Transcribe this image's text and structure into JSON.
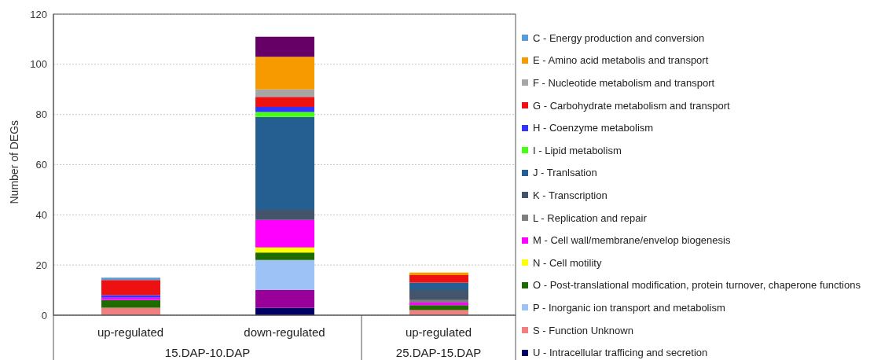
{
  "chart_data": {
    "type": "bar",
    "stacked": true,
    "ylabel": "Number of DEGs",
    "categories": [
      "up-regulated",
      "down-regulated",
      "up-regulated"
    ],
    "annotations": [
      "15.DAP-10.DAP",
      "25.DAP-15.DAP"
    ],
    "ylim": [
      0,
      120
    ],
    "yticks": [
      0,
      20,
      40,
      60,
      80,
      100,
      120
    ],
    "grid": "y",
    "legend": "right",
    "series": [
      {
        "name": "U - Intracellular trafficing and secretion",
        "color": "#000066",
        "values": [
          null,
          3,
          null
        ]
      },
      {
        "color": "#990099",
        "values": [
          null,
          7,
          null
        ]
      },
      {
        "name": "S -  Function Unknown",
        "color": "#f08080",
        "values": [
          3,
          null,
          2
        ]
      },
      {
        "name": "P -  Inorganic ion transport and metabolism",
        "color": "#9dc3f6",
        "values": [
          null,
          12,
          null
        ]
      },
      {
        "name": "O - Post-translational modification, protein turnover, chaperone functions",
        "color": "#1e6b00",
        "values": [
          3,
          3,
          2
        ]
      },
      {
        "name": "N - Cell motility",
        "color": "#ffff00",
        "values": [
          null,
          2,
          null
        ]
      },
      {
        "name": "M - Cell wall/membrane/envelop biogenesis",
        "color": "#ff00ff",
        "values": [
          1,
          11,
          1
        ]
      },
      {
        "name": "L - Replication and repair",
        "color": "#7f7f7f",
        "values": [
          null,
          null,
          1
        ]
      },
      {
        "name": "K - Transcription",
        "color": "#44546a",
        "values": [
          null,
          4,
          4
        ]
      },
      {
        "name": "J - Tranlsation",
        "color": "#255e91",
        "values": [
          null,
          37,
          3
        ]
      },
      {
        "name": "I - Lipid metabolism",
        "color": "#44ff11",
        "values": [
          null,
          2,
          null
        ]
      },
      {
        "name": "H - Coenzyme metabolism",
        "color": "#3333ff",
        "values": [
          1,
          2,
          null
        ]
      },
      {
        "name": "G - Carbohydrate metabolism and transport",
        "color": "#ee1111",
        "values": [
          6,
          4,
          3
        ]
      },
      {
        "name": "F - Nucleotide metabolism and transport",
        "color": "#a6a6a6",
        "values": [
          null,
          3,
          null
        ]
      },
      {
        "name": "E - Amino acid metabolis and transport",
        "color": "#f79a00",
        "values": [
          null,
          13,
          1
        ]
      },
      {
        "name": "C - Energy production and conversion",
        "color": "#5b9bd5",
        "values": [
          1,
          null,
          null
        ]
      },
      {
        "color": "#660066",
        "values": [
          null,
          8,
          null
        ]
      }
    ]
  }
}
